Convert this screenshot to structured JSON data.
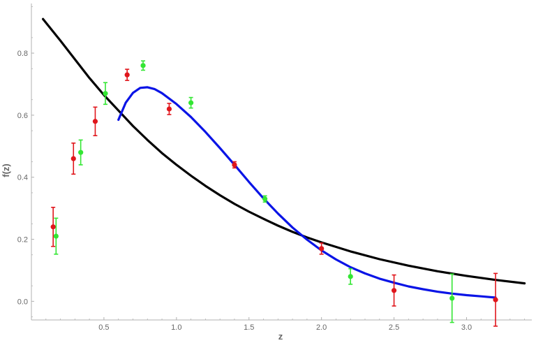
{
  "chart_data": {
    "type": "scatter",
    "title": "",
    "xlabel": "z",
    "ylabel": "f(z)",
    "xlim": [
      0.0,
      3.45
    ],
    "ylim": [
      -0.06,
      0.96
    ],
    "x_ticks": [
      0.5,
      1.0,
      1.5,
      2.0,
      2.5,
      3.0
    ],
    "x_tick_labels": [
      "0.5",
      "1.0",
      "1.5",
      "2.0",
      "2.5",
      "3.0"
    ],
    "y_ticks": [
      0.0,
      0.2,
      0.4,
      0.6,
      0.8
    ],
    "y_tick_labels": [
      "0.0",
      "0.2",
      "0.4",
      "0.6",
      "0.8"
    ],
    "grid": false,
    "colors": {
      "red_points": "#e0161c",
      "green_points": "#33e633",
      "black_curve": "#000000",
      "blue_curve": "#0a14e6",
      "axis": "#b0b0b0",
      "tick_text": "#666666"
    },
    "series": [
      {
        "kind": "errorbar",
        "color": "#e0161c",
        "points": [
          {
            "x": 0.15,
            "y": 0.24,
            "err": 0.063
          },
          {
            "x": 0.29,
            "y": 0.46,
            "err": 0.05
          },
          {
            "x": 0.44,
            "y": 0.58,
            "err": 0.046
          },
          {
            "x": 0.66,
            "y": 0.73,
            "err": 0.018
          },
          {
            "x": 0.95,
            "y": 0.62,
            "err": 0.018
          },
          {
            "x": 1.4,
            "y": 0.44,
            "err": 0.01
          },
          {
            "x": 2.0,
            "y": 0.17,
            "err": 0.018
          },
          {
            "x": 2.5,
            "y": 0.035,
            "err": 0.05
          },
          {
            "x": 3.2,
            "y": 0.005,
            "err": 0.085
          }
        ]
      },
      {
        "kind": "errorbar",
        "color": "#33e633",
        "points": [
          {
            "x": 0.17,
            "y": 0.21,
            "err": 0.058
          },
          {
            "x": 0.34,
            "y": 0.48,
            "err": 0.04
          },
          {
            "x": 0.51,
            "y": 0.67,
            "err": 0.035
          },
          {
            "x": 0.77,
            "y": 0.76,
            "err": 0.015
          },
          {
            "x": 1.1,
            "y": 0.64,
            "err": 0.017
          },
          {
            "x": 1.61,
            "y": 0.33,
            "err": 0.01
          },
          {
            "x": 2.2,
            "y": 0.08,
            "err": 0.025
          },
          {
            "x": 2.9,
            "y": 0.01,
            "err": 0.078
          }
        ]
      },
      {
        "kind": "curve",
        "color": "#000000",
        "points": [
          [
            0.08,
            0.91
          ],
          [
            0.2,
            0.84
          ],
          [
            0.3,
            0.78
          ],
          [
            0.4,
            0.72
          ],
          [
            0.5,
            0.665
          ],
          [
            0.6,
            0.615
          ],
          [
            0.7,
            0.565
          ],
          [
            0.8,
            0.52
          ],
          [
            0.9,
            0.478
          ],
          [
            1.0,
            0.44
          ],
          [
            1.1,
            0.405
          ],
          [
            1.2,
            0.372
          ],
          [
            1.3,
            0.342
          ],
          [
            1.4,
            0.314
          ],
          [
            1.5,
            0.289
          ],
          [
            1.6,
            0.266
          ],
          [
            1.7,
            0.244
          ],
          [
            1.8,
            0.224
          ],
          [
            1.9,
            0.206
          ],
          [
            2.0,
            0.19
          ],
          [
            2.2,
            0.161
          ],
          [
            2.4,
            0.136
          ],
          [
            2.6,
            0.115
          ],
          [
            2.8,
            0.097
          ],
          [
            3.0,
            0.082
          ],
          [
            3.2,
            0.069
          ],
          [
            3.4,
            0.058
          ]
        ]
      },
      {
        "kind": "curve",
        "color": "#0a14e6",
        "points": [
          [
            0.6,
            0.585
          ],
          [
            0.65,
            0.64
          ],
          [
            0.7,
            0.672
          ],
          [
            0.75,
            0.688
          ],
          [
            0.8,
            0.69
          ],
          [
            0.85,
            0.684
          ],
          [
            0.9,
            0.671
          ],
          [
            1.0,
            0.636
          ],
          [
            1.1,
            0.594
          ],
          [
            1.2,
            0.546
          ],
          [
            1.3,
            0.494
          ],
          [
            1.4,
            0.44
          ],
          [
            1.5,
            0.385
          ],
          [
            1.6,
            0.332
          ],
          [
            1.7,
            0.283
          ],
          [
            1.8,
            0.238
          ],
          [
            1.9,
            0.199
          ],
          [
            2.0,
            0.164
          ],
          [
            2.1,
            0.135
          ],
          [
            2.2,
            0.11
          ],
          [
            2.3,
            0.09
          ],
          [
            2.4,
            0.073
          ],
          [
            2.5,
            0.06
          ],
          [
            2.6,
            0.048
          ],
          [
            2.7,
            0.039
          ],
          [
            2.8,
            0.031
          ],
          [
            2.9,
            0.025
          ],
          [
            3.0,
            0.02
          ],
          [
            3.1,
            0.016
          ],
          [
            3.2,
            0.012
          ]
        ]
      }
    ]
  }
}
